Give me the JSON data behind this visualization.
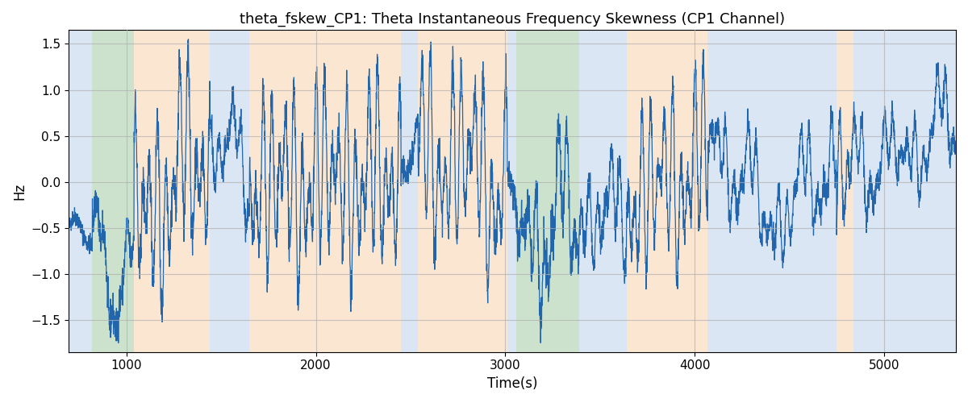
{
  "title": "theta_fskew_CP1: Theta Instantaneous Frequency Skewness (CP1 Channel)",
  "xlabel": "Time(s)",
  "ylabel": "Hz",
  "ylim": [
    -1.85,
    1.65
  ],
  "xlim": [
    695,
    5380
  ],
  "line_color": "#2166ac",
  "line_width": 0.9,
  "bg_bands": [
    {
      "xstart": 695,
      "xend": 820,
      "color": "#adc8e8"
    },
    {
      "xstart": 820,
      "xend": 1040,
      "color": "#90c090"
    },
    {
      "xstart": 1040,
      "xend": 1440,
      "color": "#f5c99a"
    },
    {
      "xstart": 1440,
      "xend": 1650,
      "color": "#adc8e8"
    },
    {
      "xstart": 1650,
      "xend": 2450,
      "color": "#f5c99a"
    },
    {
      "xstart": 2450,
      "xend": 2540,
      "color": "#adc8e8"
    },
    {
      "xstart": 2540,
      "xend": 3010,
      "color": "#f5c99a"
    },
    {
      "xstart": 3010,
      "xend": 3060,
      "color": "#adc8e8"
    },
    {
      "xstart": 3060,
      "xend": 3390,
      "color": "#90c090"
    },
    {
      "xstart": 3390,
      "xend": 3640,
      "color": "#adc8e8"
    },
    {
      "xstart": 3640,
      "xend": 4070,
      "color": "#f5c99a"
    },
    {
      "xstart": 4070,
      "xend": 4750,
      "color": "#adc8e8"
    },
    {
      "xstart": 4750,
      "xend": 4840,
      "color": "#f5c99a"
    },
    {
      "xstart": 4840,
      "xend": 5380,
      "color": "#adc8e8"
    }
  ],
  "bg_alpha": 0.45,
  "grid_color": "#b0b0b0",
  "grid_alpha": 0.7,
  "grid_linewidth": 0.8,
  "title_fontsize": 13,
  "label_fontsize": 12,
  "tick_fontsize": 11,
  "seed": 42,
  "n_points": 4680,
  "t_start": 695,
  "t_end": 5380
}
